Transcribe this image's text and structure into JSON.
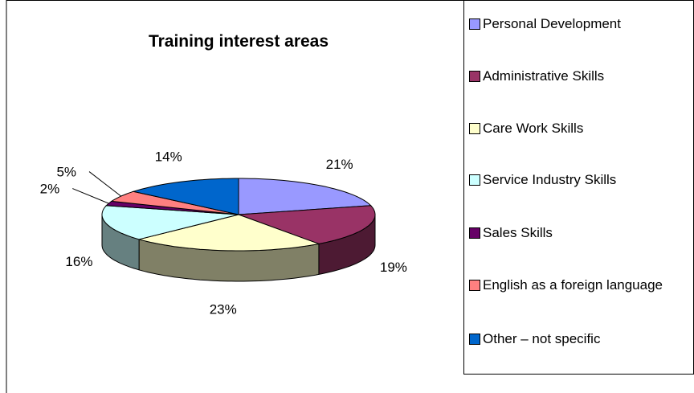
{
  "chart_data": {
    "type": "pie",
    "title": "Training interest areas",
    "categories": [
      "Personal Development",
      "Administrative Skills",
      "Care Work Skills",
      "Service Industry Skills",
      "Sales Skills",
      "English as a foreign language",
      "Other – not specific"
    ],
    "values": [
      21,
      19,
      23,
      16,
      2,
      5,
      14
    ],
    "value_labels": [
      "21%",
      "19%",
      "23%",
      "16%",
      "2%",
      "5%",
      "14%"
    ],
    "colors": [
      "#9999ff",
      "#993366",
      "#ffffcc",
      "#ccffff",
      "#660066",
      "#ff8080",
      "#0066cc"
    ],
    "legend": "right"
  }
}
